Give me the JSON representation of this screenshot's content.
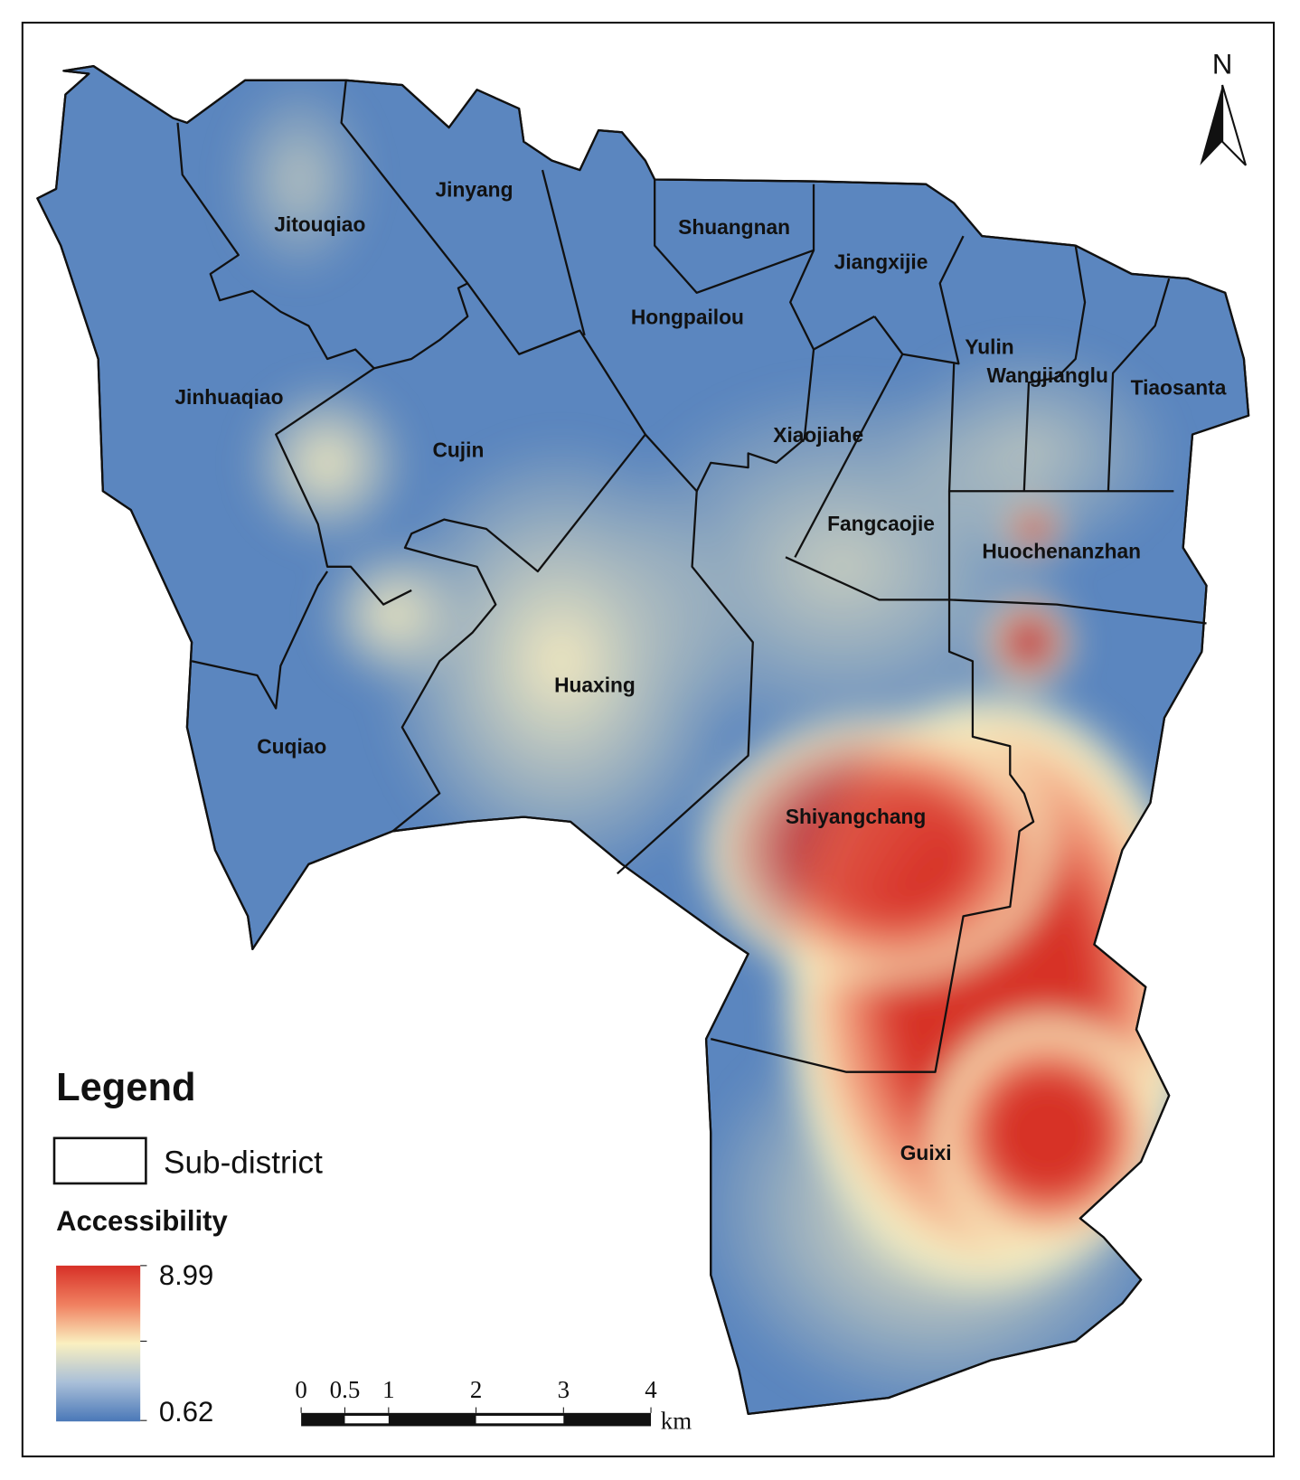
{
  "north": "N",
  "sub_districts": [
    {
      "label": "Jitouqiao"
    },
    {
      "label": "Jinyang"
    },
    {
      "label": "Shuangnan"
    },
    {
      "label": "Jiangxijie"
    },
    {
      "label": "Hongpailou"
    },
    {
      "label": "Yulin"
    },
    {
      "label": "Wangjianglu"
    },
    {
      "label": "Tiaosanta"
    },
    {
      "label": "Jinhuaqiao"
    },
    {
      "label": "Xiaojiahe"
    },
    {
      "label": "Cujin"
    },
    {
      "label": "Fangcaojie"
    },
    {
      "label": "Huochenanzhan"
    },
    {
      "label": "Huaxing"
    },
    {
      "label": "Cuqiao"
    },
    {
      "label": "Shiyangchang"
    },
    {
      "label": "Guixi"
    }
  ],
  "legend": {
    "title": "Legend",
    "boundary_label": "Sub-district",
    "accessibility_title": "Accessibility",
    "max": 8.99,
    "min": 0.62
  },
  "scale_bar": {
    "ticks": [
      0,
      0.5,
      1,
      2,
      3,
      4
    ],
    "unit": "km"
  }
}
